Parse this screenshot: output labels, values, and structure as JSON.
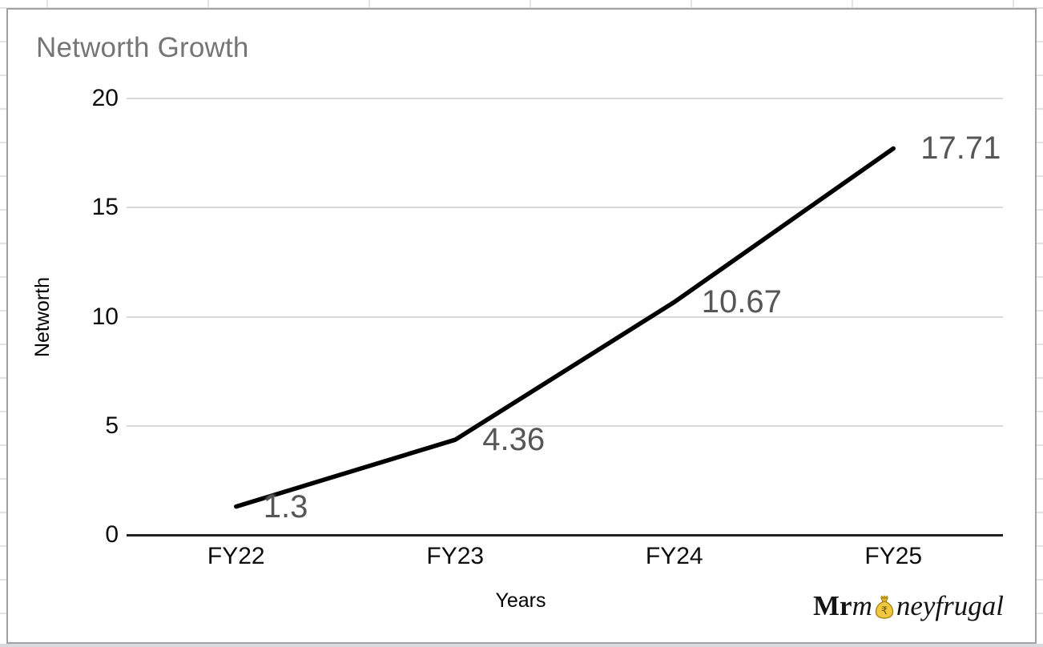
{
  "chart": {
    "title": "Networth Growth",
    "xlabel": "Years",
    "ylabel": "Networth"
  },
  "chart_data": {
    "type": "line",
    "title": "Networth Growth",
    "xlabel": "Years",
    "ylabel": "Networth",
    "categories": [
      "FY22",
      "FY23",
      "FY24",
      "FY25"
    ],
    "values": [
      1.3,
      4.36,
      10.67,
      17.71
    ],
    "data_labels": [
      "1.3",
      "4.36",
      "10.67",
      "17.71"
    ],
    "ylim": [
      0,
      20
    ],
    "yticks": [
      0,
      5,
      10,
      15,
      20
    ],
    "grid": true,
    "legend": "none",
    "line_color": "#000000",
    "data_label_color": "#565656",
    "gridline_color": "#d9d9d9",
    "title_color": "#757575"
  },
  "logo": {
    "bold_part": "Mr",
    "italic_m": "m",
    "italic_rest": "neyfrugal",
    "bag_symbol": "₹",
    "bag_color": "#edc233"
  },
  "colors": {
    "chart_border": "#a2a2a2",
    "sheet_gridline": "#e3e4e3",
    "axis_line": "#1f1f1f"
  }
}
